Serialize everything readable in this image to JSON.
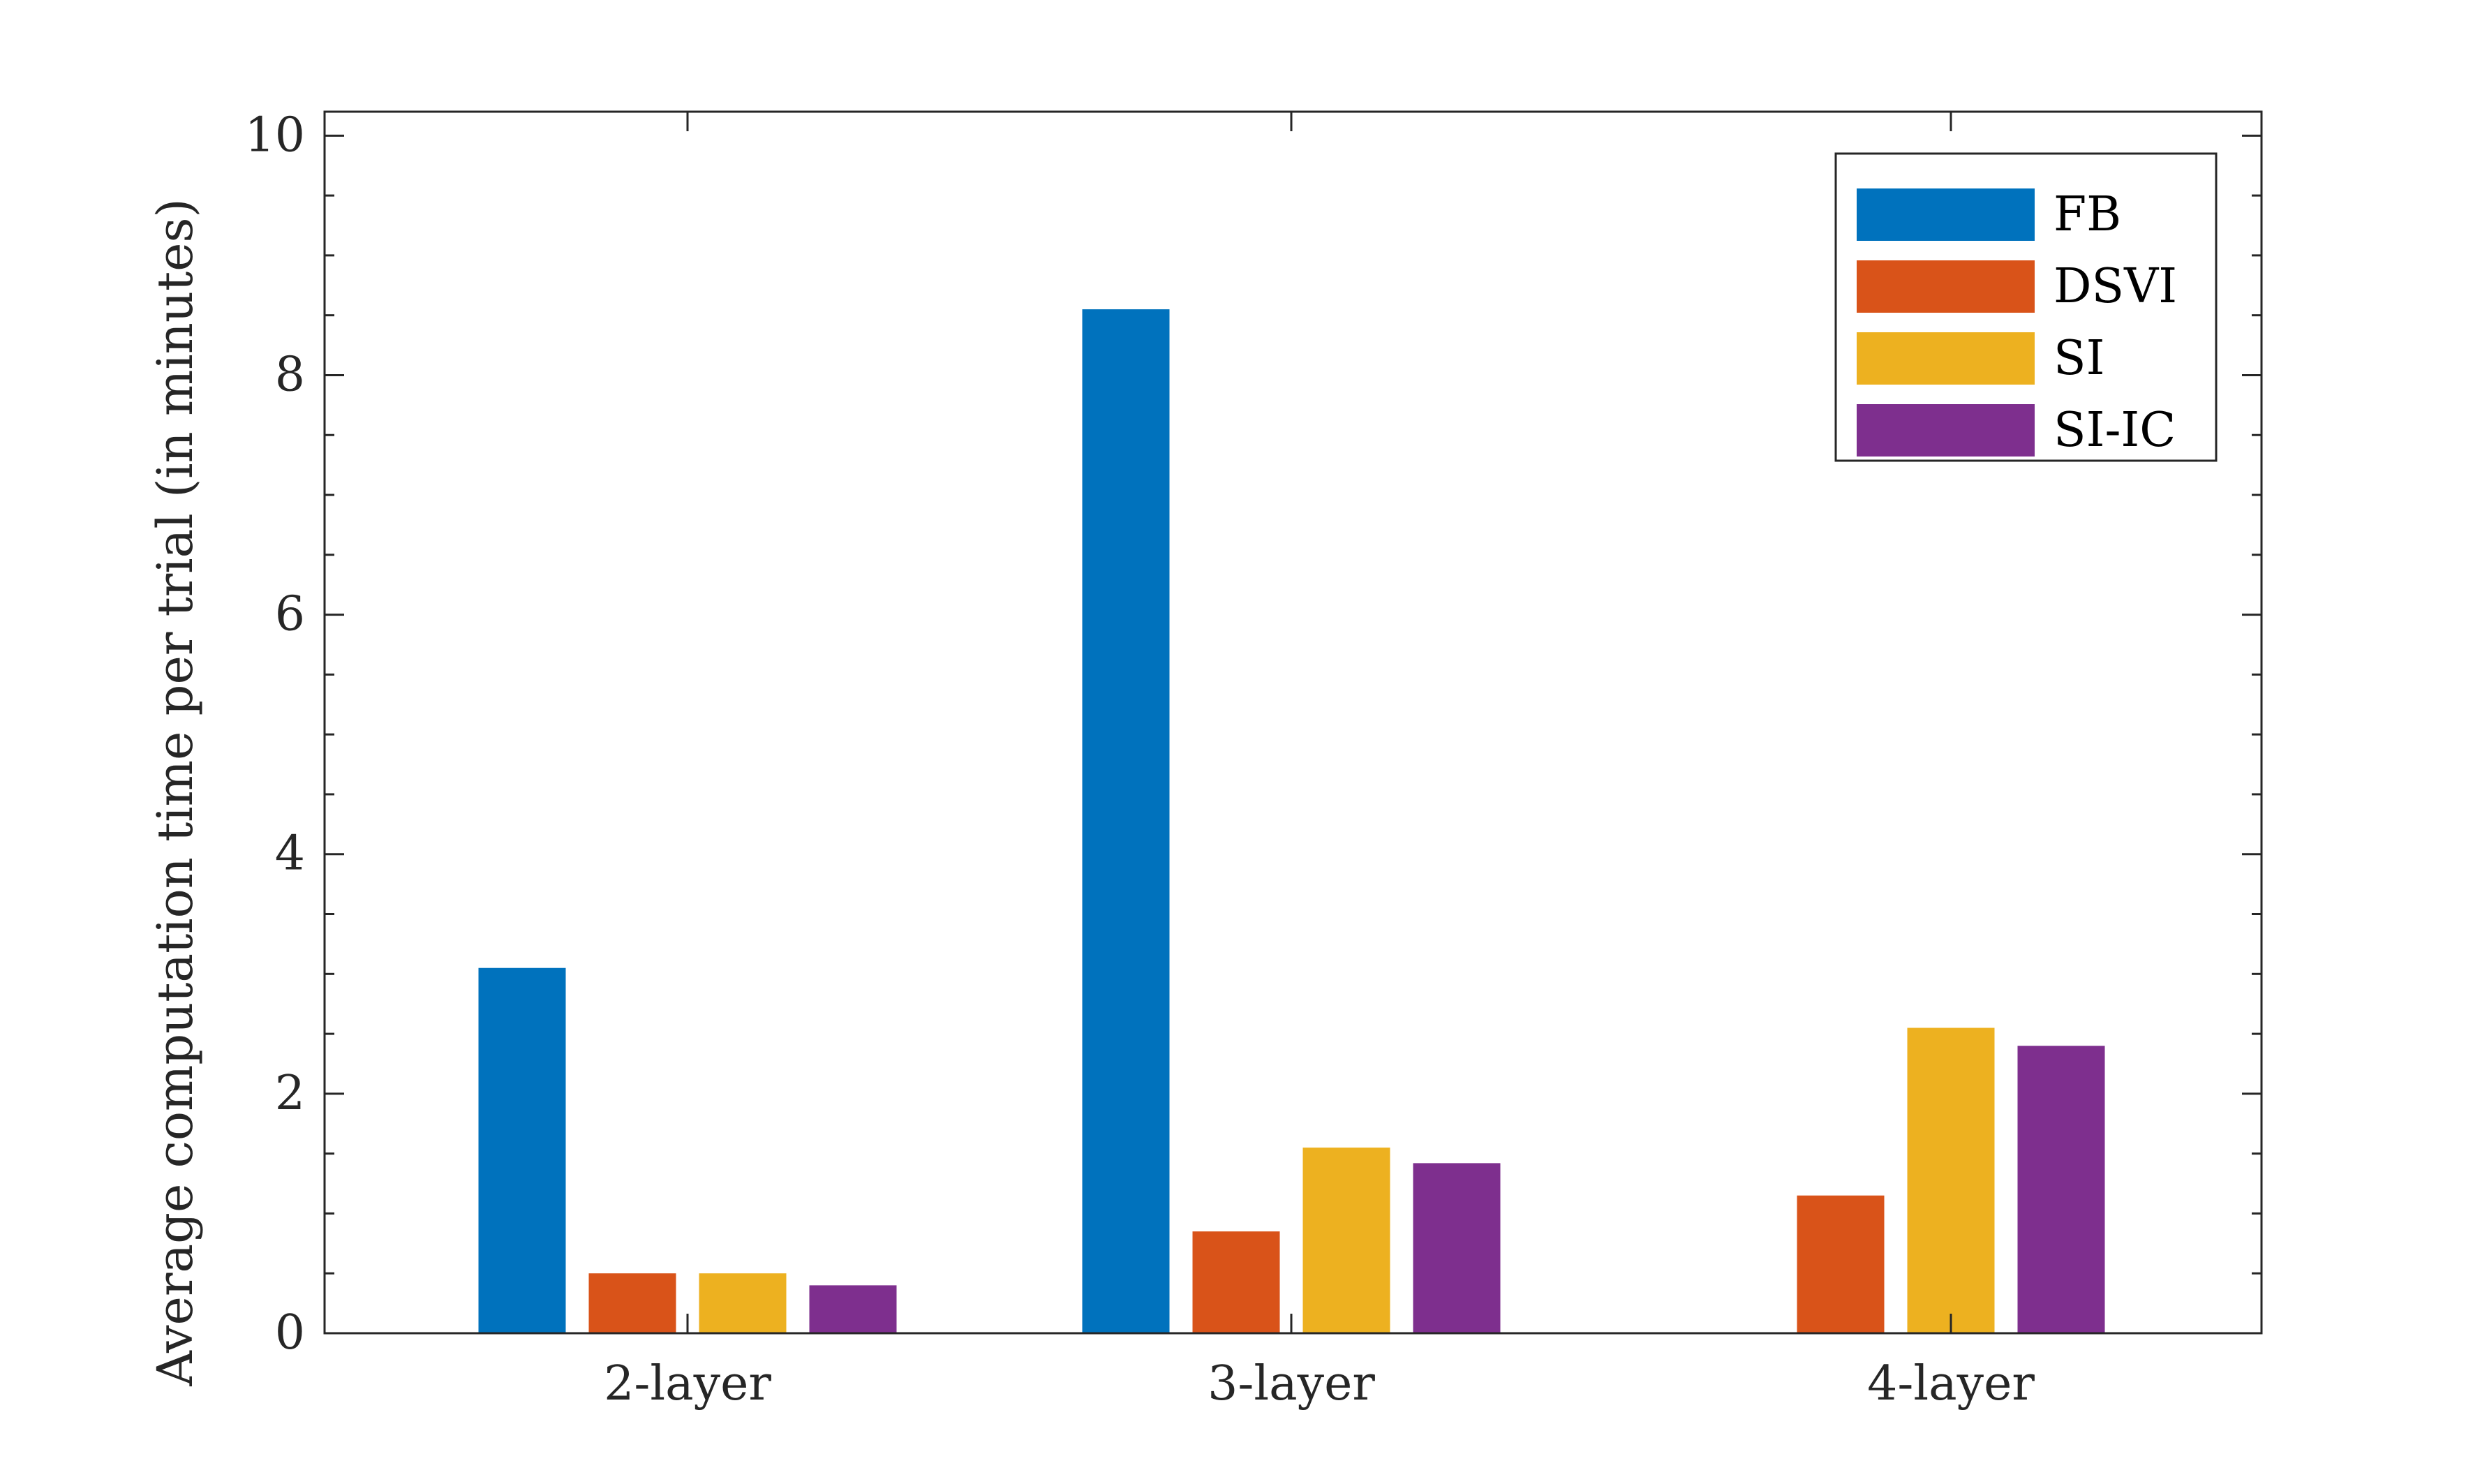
{
  "chart_data": {
    "type": "bar",
    "title": "",
    "xlabel": "",
    "ylabel": "Average computation time per trial (in minutes)",
    "categories": [
      "2-layer",
      "3-layer",
      "4-layer"
    ],
    "ylim": [
      0,
      10.2
    ],
    "yticks": [
      0,
      2,
      4,
      6,
      8,
      10
    ],
    "y_minor_step": 0.5,
    "grid": false,
    "legend_position": "top-right",
    "series": [
      {
        "name": "FB",
        "color": "#0072BD",
        "values": [
          3.05,
          8.55,
          0
        ]
      },
      {
        "name": "DSVI",
        "color": "#D95319",
        "values": [
          0.5,
          0.85,
          1.15
        ]
      },
      {
        "name": "SI",
        "color": "#EDB120",
        "values": [
          0.5,
          1.55,
          2.55
        ]
      },
      {
        "name": "SI-IC",
        "color": "#7E2F8E",
        "values": [
          0.4,
          1.42,
          2.4
        ]
      }
    ]
  }
}
